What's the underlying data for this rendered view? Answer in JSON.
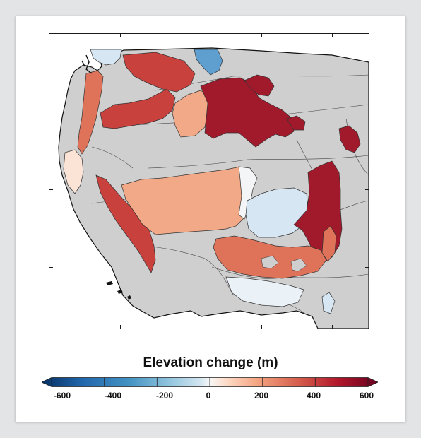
{
  "figure": {
    "colorbar_title": "Elevation change (m)",
    "colorbar_ticks": [
      "-600",
      "-400",
      "-200",
      "0",
      "200",
      "400",
      "600"
    ],
    "colorbar_range": [
      -600,
      600
    ],
    "colormap": "RdBu_r (diverging, blue negative to red positive)",
    "land_color": "#cfcfcf",
    "ocean_color": "#ffffff",
    "region_colors": {
      "dark_red": "#a01a2c",
      "red": "#c9413d",
      "orange_red": "#df7359",
      "salmon": "#f2a987",
      "light_pink": "#fbe3d6",
      "near_white": "#f3f5f7",
      "light_blue": "#d6e6f3",
      "blue": "#5f9fd0"
    }
  }
}
